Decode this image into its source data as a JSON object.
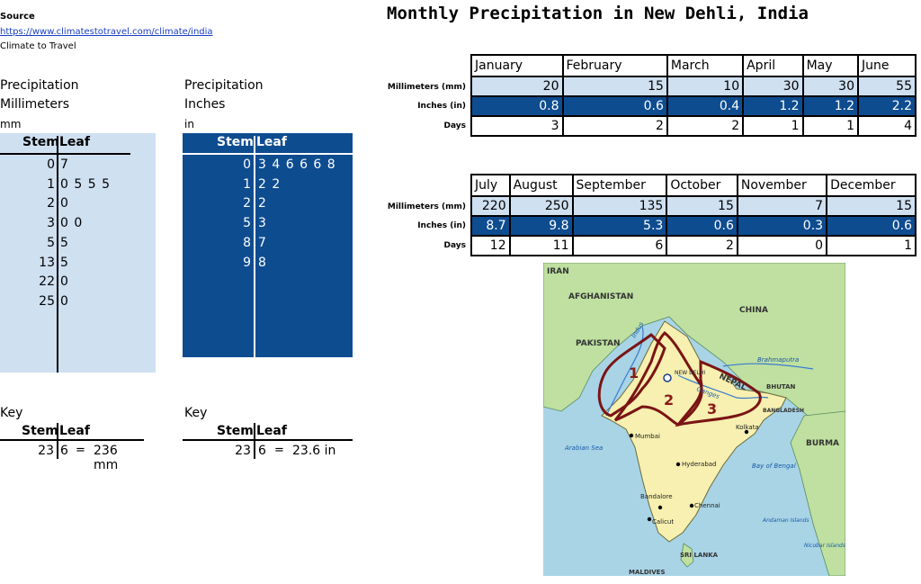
{
  "source": {
    "heading": "Source",
    "url": "https://www.climatestotravel.com/climate/india",
    "name": "Climate to Travel"
  },
  "title": "Monthly Precipitation in New Dehli, India",
  "mm_plot": {
    "label1": "Precipitation",
    "label2": "Millimeters",
    "unit": "mm",
    "stem_header": "Stem",
    "leaf_header": "Leaf",
    "rows": [
      {
        "stem": "0",
        "leaf": "7"
      },
      {
        "stem": "1",
        "leaf": "0 5 5 5"
      },
      {
        "stem": "2",
        "leaf": "0"
      },
      {
        "stem": "3",
        "leaf": "0 0"
      },
      {
        "stem": "5",
        "leaf": "5"
      },
      {
        "stem": "13",
        "leaf": "5"
      },
      {
        "stem": "22",
        "leaf": "0"
      },
      {
        "stem": "25",
        "leaf": "0"
      }
    ]
  },
  "in_plot": {
    "label1": "Precipitation",
    "label2": "Inches",
    "unit": "in",
    "stem_header": "Stem",
    "leaf_header": "Leaf",
    "rows": [
      {
        "stem": "0",
        "leaf": "3 4 6 6 6 8"
      },
      {
        "stem": "1",
        "leaf": "2 2"
      },
      {
        "stem": "2",
        "leaf": "2"
      },
      {
        "stem": "5",
        "leaf": "3"
      },
      {
        "stem": "8",
        "leaf": "7"
      },
      {
        "stem": "9",
        "leaf": "8"
      }
    ]
  },
  "key_mm": {
    "label": "Key",
    "stem_header": "Stem",
    "leaf_header": "Leaf",
    "stem": "23",
    "leaf": "6",
    "eq": "=",
    "value": "236 mm"
  },
  "key_in": {
    "label": "Key",
    "stem_header": "Stem",
    "leaf_header": "Leaf",
    "stem": "23",
    "leaf": "6",
    "eq": "=",
    "value": "23.6 in"
  },
  "row_labels": {
    "mm": "Millimeters (mm)",
    "in": "Inches (in)",
    "days": "Days"
  },
  "table1": {
    "months": [
      "January",
      "February",
      "March",
      "April",
      "May",
      "June"
    ],
    "mm": [
      "20",
      "15",
      "10",
      "30",
      "30",
      "55"
    ],
    "in": [
      "0.8",
      "0.6",
      "0.4",
      "1.2",
      "1.2",
      "2.2"
    ],
    "days": [
      "3",
      "2",
      "2",
      "1",
      "1",
      "4"
    ]
  },
  "table2": {
    "months": [
      "July",
      "August",
      "September",
      "October",
      "November",
      "December"
    ],
    "mm": [
      "220",
      "250",
      "135",
      "15",
      "7",
      "15"
    ],
    "in": [
      "8.7",
      "9.8",
      "5.3",
      "0.6",
      "0.3",
      "0.6"
    ],
    "days": [
      "12",
      "11",
      "6",
      "2",
      "0",
      "1"
    ]
  },
  "map": {
    "labels": {
      "iran": "IRAN",
      "afghanistan": "AFGHANISTAN",
      "china": "CHINA",
      "pakistan": "PAKISTAN",
      "indus": "Indus",
      "new_delhi": "NEW DELHI",
      "nepal": "NEPAL",
      "ganges": "Ganges",
      "brahmaputra": "Brahmaputra",
      "bhutan": "BHUTAN",
      "bangladesh": "BANGLADESH",
      "burma": "BURMA",
      "kolkata": "Kolkata",
      "mumbai": "Mumbai",
      "arabian_sea": "Arabian Sea",
      "hyderabad": "Hyderabad",
      "bay_of_bengal": "Bay of Bengal",
      "bandalore": "Bandalore",
      "chennai": "Chennai",
      "calicut": "Calicut",
      "andaman": "Andaman Islands",
      "nicobar": "Nicobar Islands",
      "sri_lanka": "SRI LANKA",
      "maldives": "MALDIVES",
      "region1": "1",
      "region2": "2",
      "region3": "3"
    },
    "colors": {
      "sea": "#a8d4e6",
      "india": "#f7f0b0",
      "neighbors": "#bfe0a0",
      "region_outline": "#7a1414"
    }
  }
}
